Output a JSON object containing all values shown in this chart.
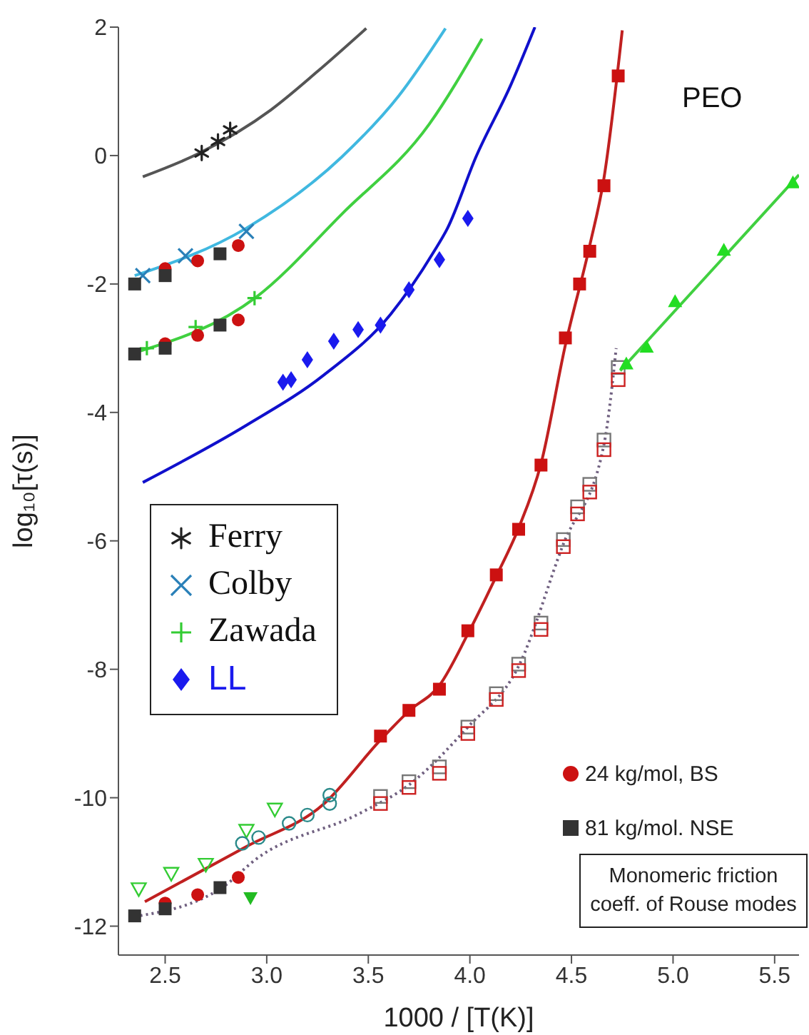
{
  "chart_data": {
    "type": "scatter",
    "xlabel": "1000 / [T(K)]",
    "ylabel": "log₁₀[τ(s)]",
    "xlim": [
      2.27,
      5.62
    ],
    "ylim": [
      -12.45,
      2
    ],
    "xticks": [
      2.5,
      {
        "value": 3,
        "label": "3.0"
      },
      3.5,
      {
        "value": 4,
        "label": "4.0"
      },
      4.5,
      {
        "value": 5,
        "label": "5.0"
      },
      5.5
    ],
    "yticks": [
      -12,
      -10,
      -8,
      -6,
      -4,
      -2,
      0,
      2
    ],
    "grid": false,
    "legend": "left",
    "annotations": [
      "PEO",
      "Monomeric friction coeff. of Rouse modes"
    ],
    "series": [
      {
        "type": "line",
        "color": "#555555",
        "line_style": "solid",
        "x": [
          2.39,
          2.67,
          3.02,
          3.25,
          3.49
        ],
        "values": [
          -0.33,
          0.04,
          0.71,
          1.31,
          1.98
        ]
      },
      {
        "type": "line",
        "color": "#40b8e0",
        "line_style": "solid",
        "x": [
          2.35,
          2.9,
          3.37,
          3.65,
          3.88
        ],
        "values": [
          -1.87,
          -1.13,
          -0.02,
          0.93,
          1.98
        ]
      },
      {
        "type": "line",
        "color": "#40d040",
        "line_style": "solid",
        "x": [
          2.35,
          2.95,
          3.37,
          3.8,
          4.06
        ],
        "values": [
          -3.07,
          -2.2,
          -0.91,
          0.49,
          1.82
        ]
      },
      {
        "type": "line",
        "color": "#1010cc",
        "line_style": "solid",
        "x": [
          2.39,
          2.9,
          3.28,
          3.61,
          3.82,
          3.89,
          4.03,
          4.2,
          4.32
        ],
        "values": [
          -5.09,
          -4.2,
          -3.42,
          -2.47,
          -1.51,
          -1.13,
          -0.02,
          1.09,
          2
        ]
      },
      {
        "type": "line",
        "color": "#c02020",
        "line_style": "solid",
        "x": [
          2.4,
          2.9,
          3.28,
          3.56,
          3.7,
          3.85,
          3.99,
          4.13,
          4.24,
          4.35,
          4.47,
          4.59,
          4.66,
          4.75
        ],
        "values": [
          -11.62,
          -10.76,
          -10.1,
          -9.1,
          -8.65,
          -8.25,
          -7.45,
          -6.55,
          -5.8,
          -4.8,
          -2.95,
          -1.4,
          -0.35,
          1.95
        ]
      },
      {
        "type": "line",
        "color": "#706080",
        "line_style": "dotted",
        "x": [
          2.35,
          2.78,
          2.95,
          3.46,
          3.7,
          3.99,
          4.24,
          4.46,
          4.66,
          4.72
        ],
        "values": [
          -11.85,
          -11.4,
          -10.95,
          -10.24,
          -9.8,
          -8.9,
          -7.95,
          -6.05,
          -4.5,
          -3.0
        ]
      },
      {
        "type": "line",
        "color": "#40d040",
        "line_style": "solid",
        "x": [
          4.74,
          5.62
        ],
        "values": [
          -3.35,
          -0.3
        ]
      },
      {
        "name": "Ferry",
        "color": "#222222",
        "x": [
          2.68,
          2.76,
          2.82
        ],
        "values": [
          0.04,
          0.22,
          0.4
        ]
      },
      {
        "name": "Colby",
        "color": "#2a80b8",
        "marker": "x",
        "x": [
          2.39,
          2.6,
          2.9
        ],
        "values": [
          -1.87,
          -1.56,
          -1.18
        ]
      },
      {
        "name": "Zawada",
        "color": "#33cc33",
        "marker": "cross",
        "x": [
          2.41,
          2.65,
          2.94
        ],
        "values": [
          -3.0,
          -2.67,
          -2.22
        ]
      },
      {
        "name": "LL",
        "color": "#1a1aee",
        "marker": "diamond",
        "x": [
          3.08,
          3.12,
          3.2,
          3.33,
          3.45,
          3.56,
          3.7,
          3.85,
          3.99
        ],
        "values": [
          -3.53,
          -3.49,
          -3.18,
          -2.89,
          -2.71,
          -2.64,
          -2.09,
          -1.62,
          -0.98
        ]
      },
      {
        "name": "24 kg/mol, BS",
        "color": "#cc1111",
        "marker": "circle",
        "x": [
          2.5,
          2.66,
          2.86,
          2.5,
          2.66,
          2.86,
          2.5,
          2.66,
          2.86
        ],
        "values": [
          -1.76,
          -1.64,
          -1.4,
          -2.93,
          -2.8,
          -2.56,
          -11.64,
          -11.51,
          -11.24
        ]
      },
      {
        "name": "81 kg/mol. NSE",
        "color": "#333333",
        "marker": "square",
        "x": [
          2.35,
          2.5,
          2.77,
          2.35,
          2.5,
          2.77,
          2.35,
          2.5,
          2.77
        ],
        "values": [
          -2.0,
          -1.87,
          -1.53,
          -3.09,
          -3.0,
          -2.64,
          -11.84,
          -11.73,
          -11.4
        ]
      },
      {
        "color": "#cc1111",
        "marker": "square",
        "x": [
          3.56,
          3.7,
          3.85,
          3.99,
          4.13,
          4.24,
          4.35,
          4.47,
          4.54,
          4.59,
          4.66,
          4.73
        ],
        "values": [
          -9.04,
          -8.64,
          -8.31,
          -7.4,
          -6.53,
          -5.82,
          -4.82,
          -2.84,
          -2.0,
          -1.49,
          -0.47,
          1.24
        ]
      },
      {
        "color": "#777777",
        "marker": "square-open",
        "x": [
          3.56,
          3.7,
          3.85,
          3.99,
          4.13,
          4.24,
          4.35,
          4.46,
          4.53,
          4.59,
          4.66,
          4.73
        ],
        "values": [
          -9.98,
          -9.75,
          -9.52,
          -8.9,
          -8.38,
          -7.92,
          -7.28,
          -5.98,
          -5.47,
          -5.12,
          -4.43,
          -3.3
        ]
      },
      {
        "color": "#cc2222",
        "marker": "square-open",
        "x": [
          3.56,
          3.7,
          3.85,
          3.99,
          4.13,
          4.24,
          4.35,
          4.46,
          4.53,
          4.59,
          4.66,
          4.73
        ],
        "values": [
          -10.09,
          -9.84,
          -9.62,
          -9.0,
          -8.47,
          -8.02,
          -7.38,
          -6.09,
          -5.58,
          -5.24,
          -4.58,
          -3.49
        ]
      },
      {
        "color": "#33cc33",
        "marker": "triangle-down-open",
        "x": [
          2.37,
          2.53,
          2.7,
          2.9,
          3.04
        ],
        "values": [
          -11.42,
          -11.18,
          -11.04,
          -10.51,
          -10.18
        ]
      },
      {
        "color": "#22bb22",
        "marker": "triangle-down",
        "x": [
          2.92
        ],
        "values": [
          -11.56
        ]
      },
      {
        "color": "#2a8a8a",
        "marker": "circle-open",
        "x": [
          2.88,
          2.96,
          3.11,
          3.2,
          3.31,
          3.31
        ],
        "values": [
          -10.71,
          -10.62,
          -10.4,
          -10.27,
          -10.09,
          -9.96
        ]
      },
      {
        "color": "#22dd22",
        "marker": "triangle",
        "x": [
          4.77,
          4.87,
          5.01,
          5.25,
          5.59
        ],
        "values": [
          -3.24,
          -2.98,
          -2.27,
          -1.47,
          -0.42
        ]
      }
    ]
  }
}
